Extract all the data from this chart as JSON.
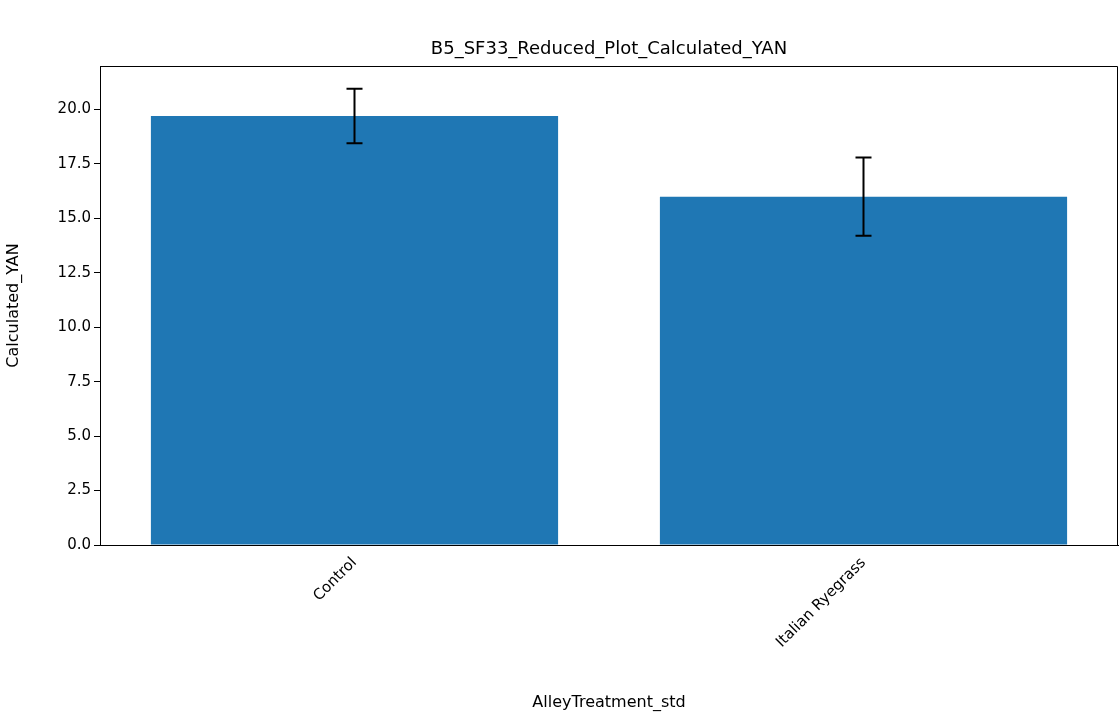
{
  "chart_data": {
    "type": "bar",
    "title": "B5_SF33_Reduced_Plot_Calculated_YAN",
    "xlabel": "AlleyTreatment_std",
    "ylabel": "Calculated_YAN",
    "categories": [
      "Control",
      "Italian Ryegrass"
    ],
    "values": [
      19.7,
      16.0
    ],
    "errors": [
      1.25,
      1.8
    ],
    "color": "#1f77b4",
    "ylim": [
      0,
      22
    ],
    "yticks": [
      {
        "value": 0,
        "label": "0.0"
      },
      {
        "value": 2.5,
        "label": "2.5"
      },
      {
        "value": 5,
        "label": "5.0"
      },
      {
        "value": 7.5,
        "label": "7.5"
      },
      {
        "value": 10,
        "label": "10.0"
      },
      {
        "value": 12.5,
        "label": "12.5"
      },
      {
        "value": 15,
        "label": "15.0"
      },
      {
        "value": 17.5,
        "label": "17.5"
      },
      {
        "value": 20,
        "label": "20.0"
      }
    ],
    "grid": false
  }
}
